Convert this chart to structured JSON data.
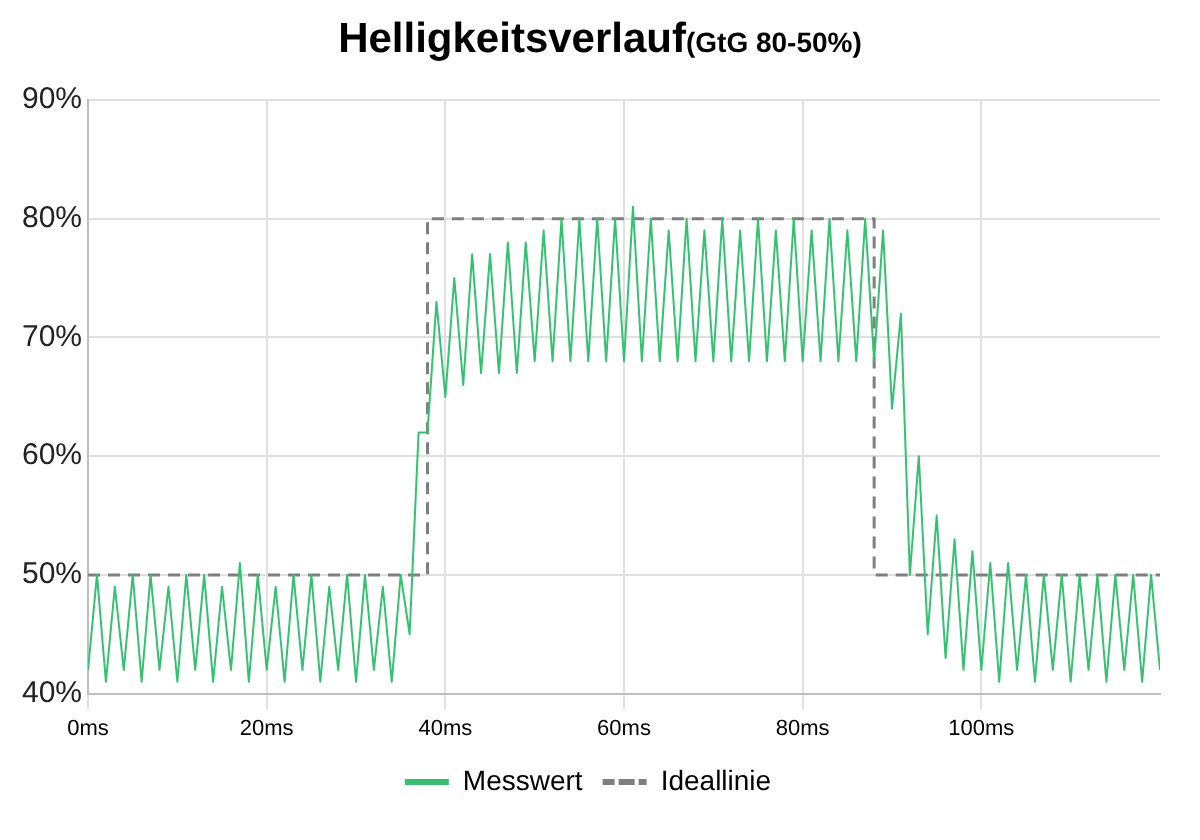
{
  "chart_data": {
    "type": "line",
    "title": "Helligkeitsverlauf",
    "subtitle": "(GtG 80-50%)",
    "xlim": [
      0,
      120
    ],
    "xticks": [
      {
        "value": 0,
        "label": "0ms"
      },
      {
        "value": 20,
        "label": "20ms"
      },
      {
        "value": 40,
        "label": "40ms"
      },
      {
        "value": 60,
        "label": "60ms"
      },
      {
        "value": 80,
        "label": "80ms"
      },
      {
        "value": 100,
        "label": "100ms"
      }
    ],
    "ylim": [
      40,
      90
    ],
    "yticks": [
      {
        "value": 40,
        "label": "40%"
      },
      {
        "value": 50,
        "label": "50%"
      },
      {
        "value": 60,
        "label": "60%"
      },
      {
        "value": 70,
        "label": "70%"
      },
      {
        "value": 80,
        "label": "80%"
      },
      {
        "value": 90,
        "label": "90%"
      }
    ],
    "grid": true,
    "legend": "bottom",
    "marker": "none",
    "series": [
      {
        "name": "Messwert",
        "color": "#34c172",
        "line_style": "solid",
        "x": [
          0,
          1,
          2,
          3,
          4,
          5,
          6,
          7,
          8,
          9,
          10,
          11,
          12,
          13,
          14,
          15,
          16,
          17,
          18,
          19,
          20,
          21,
          22,
          23,
          24,
          25,
          26,
          27,
          28,
          29,
          30,
          31,
          32,
          33,
          34,
          35,
          36,
          37,
          38,
          39,
          40,
          41,
          42,
          43,
          44,
          45,
          46,
          47,
          48,
          49,
          50,
          51,
          52,
          53,
          54,
          55,
          56,
          57,
          58,
          59,
          60,
          61,
          62,
          63,
          64,
          65,
          66,
          67,
          68,
          69,
          70,
          71,
          72,
          73,
          74,
          75,
          76,
          77,
          78,
          79,
          80,
          81,
          82,
          83,
          84,
          85,
          86,
          87,
          88,
          89,
          90,
          91,
          92,
          93,
          94,
          95,
          96,
          97,
          98,
          99,
          100,
          101,
          102,
          103,
          104,
          105,
          106,
          107,
          108,
          109,
          110,
          111,
          112,
          113,
          114,
          115,
          116,
          117,
          118,
          119,
          120
        ],
        "values": [
          42,
          50,
          41,
          49,
          42,
          50,
          41,
          50,
          42,
          49,
          41,
          50,
          42,
          50,
          41,
          49,
          42,
          51,
          41,
          50,
          42,
          49,
          41,
          50,
          42,
          50,
          41,
          49,
          42,
          50,
          41,
          50,
          42,
          49,
          41,
          50,
          45,
          62,
          62,
          73,
          65,
          75,
          66,
          77,
          67,
          77,
          67,
          78,
          67,
          78,
          68,
          79,
          68,
          80,
          68,
          80,
          68,
          80,
          68,
          80,
          68,
          81,
          68,
          80,
          68,
          79,
          68,
          80,
          68,
          79,
          68,
          80,
          68,
          79,
          68,
          80,
          68,
          79,
          68,
          80,
          68,
          79,
          68,
          80,
          68,
          79,
          68,
          80,
          68,
          79,
          64,
          72,
          50,
          60,
          45,
          55,
          43,
          53,
          42,
          52,
          42,
          51,
          41,
          51,
          42,
          50,
          41,
          50,
          42,
          50,
          41,
          50,
          42,
          50,
          41,
          50,
          42,
          50,
          41,
          50,
          42
        ]
      },
      {
        "name": "Ideallinie",
        "color": "#7f7f7f",
        "line_style": "dashed",
        "x": [
          0,
          38,
          38,
          88,
          88,
          120
        ],
        "values": [
          50,
          50,
          80,
          80,
          50,
          50
        ]
      }
    ]
  }
}
